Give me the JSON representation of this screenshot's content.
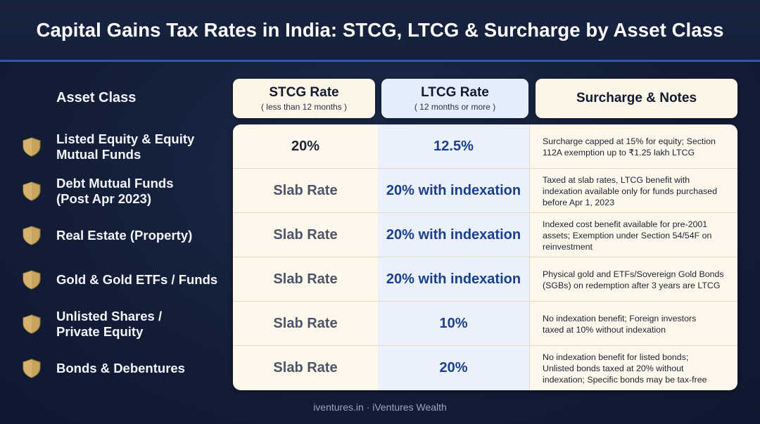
{
  "title": "Capital Gains Tax Rates in India: STCG, LTCG & Surcharge by Asset Class",
  "headers": {
    "asset_class": "Asset Class",
    "stcg": {
      "label": "STCG Rate",
      "sub": "( less than 12 months )"
    },
    "ltcg": {
      "label": "LTCG Rate",
      "sub": "( 12 months or more )"
    },
    "notes": {
      "label": "Surcharge & Notes"
    }
  },
  "rows": [
    {
      "asset_line1": "Listed Equity & Equity",
      "asset_line2": "Mutual Funds",
      "stcg": "20%",
      "ltcg": "12.5%",
      "note_line1": "Surcharge capped at 15% for equity; Section",
      "note_line2": "112A exemption up to ₹1.25 lakh LTCG",
      "note_line3": ""
    },
    {
      "asset_line1": "Debt Mutual Funds",
      "asset_line2": "(Post Apr 2023)",
      "stcg": "Slab Rate",
      "ltcg": "20% with indexation",
      "note_line1": "Taxed at slab rates, LTCG benefit with",
      "note_line2": "indexation available only for funds purchased",
      "note_line3": "before Apr 1, 2023"
    },
    {
      "asset_line1": "Real Estate (Property)",
      "asset_line2": "",
      "stcg": "Slab Rate",
      "ltcg": "20% with indexation",
      "note_line1": "Indexed cost benefit available for pre-2001",
      "note_line2": "assets; Exemption under Section 54/54F on",
      "note_line3": "reinvestment"
    },
    {
      "asset_line1": "Gold & Gold ETFs / Funds",
      "asset_line2": "",
      "stcg": "Slab Rate",
      "ltcg": "20% with indexation",
      "note_line1": "Physical gold and ETFs/Sovereign Gold Bonds",
      "note_line2": "(SGBs) on redemption after 3 years are LTCG",
      "note_line3": ""
    },
    {
      "asset_line1": "Unlisted Shares /",
      "asset_line2": "Private Equity",
      "stcg": "Slab Rate",
      "ltcg": "10%",
      "note_line1": "No indexation benefit; Foreign investors",
      "note_line2": "taxed at 10% without indexation",
      "note_line3": ""
    },
    {
      "asset_line1": "Bonds & Debentures",
      "asset_line2": "",
      "stcg": "Slab Rate",
      "ltcg": "20%",
      "note_line1": "No indexation benefit for listed bonds;",
      "note_line2": "Unlisted bonds taxed at 20% without",
      "note_line3": "indexation; Specific bonds may be tax-free"
    }
  ],
  "footer": "iventures.in · iVentures Wealth",
  "icons": {
    "row_icon": "shield-icon"
  },
  "colors": {
    "background": "#131d36",
    "accent_line": "#3257b8",
    "shield_gold": "#c9a45c",
    "ltcg_text": "#1b3f8c",
    "cream": "#fdf7ec",
    "ltcg_band": "#eaf1fc"
  }
}
